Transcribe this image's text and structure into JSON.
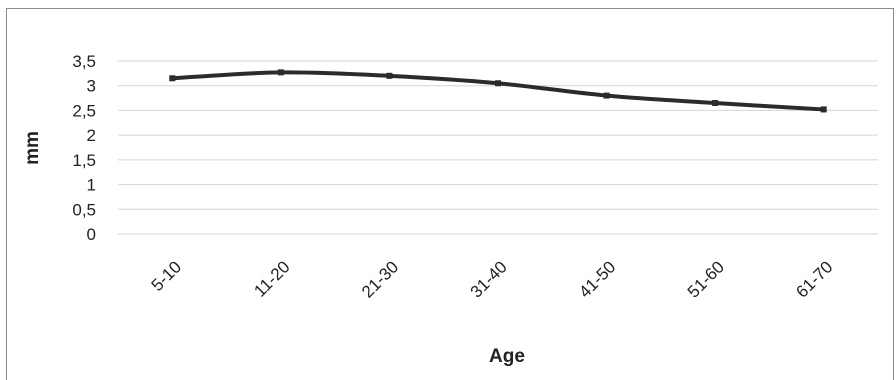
{
  "chart_data": {
    "type": "line",
    "title": "",
    "xlabel": "Age",
    "ylabel": "mm",
    "categories": [
      "5-10",
      "11-20",
      "21-30",
      "31-40",
      "41-50",
      "51-60",
      "61-70"
    ],
    "series": [
      {
        "values": [
          3.15,
          3.27,
          3.2,
          3.05,
          2.8,
          2.65,
          2.52
        ]
      }
    ],
    "ylim": [
      0,
      3.5
    ],
    "yticks": [
      "0",
      "0,5",
      "1",
      "1,5",
      "2",
      "2,5",
      "3",
      "3,5"
    ],
    "grid": true,
    "legend": "none",
    "colors": {
      "line": "#2b2b2b",
      "grid": "#d4d4d4",
      "text": "#222222"
    }
  }
}
